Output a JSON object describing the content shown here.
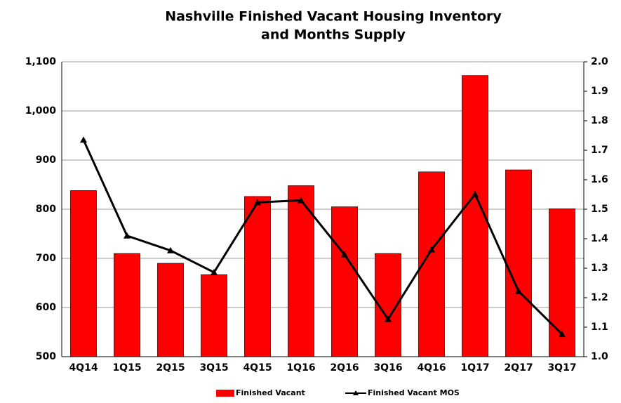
{
  "chart_data": {
    "type": "bar_line",
    "title": [
      "Nashville Finished Vacant Housing Inventory",
      "and Months Supply"
    ],
    "categories": [
      "4Q14",
      "1Q15",
      "2Q15",
      "3Q15",
      "4Q15",
      "1Q16",
      "2Q16",
      "3Q16",
      "4Q16",
      "1Q17",
      "2Q17",
      "3Q17"
    ],
    "series": [
      {
        "name": "Finished Vacant",
        "color": "#ff0000",
        "type": "bar",
        "values": [
          838,
          710,
          690,
          667,
          826,
          848,
          805,
          710,
          876,
          1072,
          880,
          801
        ]
      },
      {
        "name": "Finished Vacant MOS",
        "color": "#000000",
        "type": "line",
        "axis": "y2",
        "values": [
          1.735,
          1.41,
          1.36,
          1.286,
          1.523,
          1.53,
          1.346,
          1.127,
          1.363,
          1.551,
          1.222,
          1.076
        ]
      }
    ],
    "ylim": [
      500,
      1100
    ],
    "yticks": [
      500,
      600,
      700,
      800,
      900,
      {
        "value": 1000,
        "label": "1,000"
      },
      {
        "value": 1100,
        "label": "1,100"
      }
    ],
    "y2lim": [
      1.0,
      2.0
    ],
    "y2ticks": [
      {
        "value": 1,
        "label": "1.0"
      },
      1.1,
      1.2,
      1.3,
      1.4,
      1.5,
      1.6,
      1.7,
      1.8,
      1.9,
      {
        "value": 2,
        "label": "2.0"
      }
    ],
    "grid": true,
    "legend": "bottom"
  }
}
